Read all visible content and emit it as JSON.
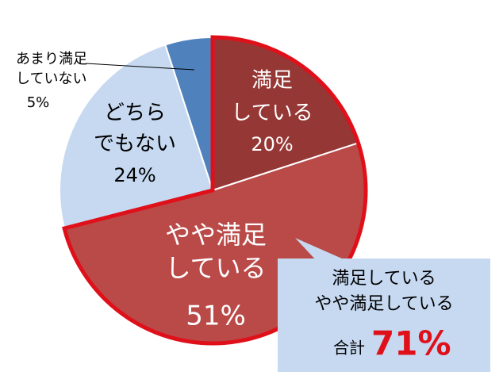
{
  "chart_data": {
    "type": "pie",
    "categories": [
      [
        "満足",
        "している"
      ],
      [
        "やや満足",
        "している"
      ],
      [
        "どちら",
        "でもない"
      ],
      [
        "あまり満足",
        "していない"
      ]
    ],
    "values": [
      20,
      51,
      24,
      5
    ],
    "value_labels": [
      "20%",
      "51%",
      "24%",
      "5%"
    ],
    "colors": [
      "#953735",
      "#b94a48",
      "#c6d9f1",
      "#4f81bd"
    ],
    "highlight_color": "#e0101a",
    "callout": {
      "lines": [
        "満足している",
        "やや満足している"
      ],
      "total_label": "合計",
      "total_value": "71%",
      "color": "#c6d9f1"
    }
  }
}
